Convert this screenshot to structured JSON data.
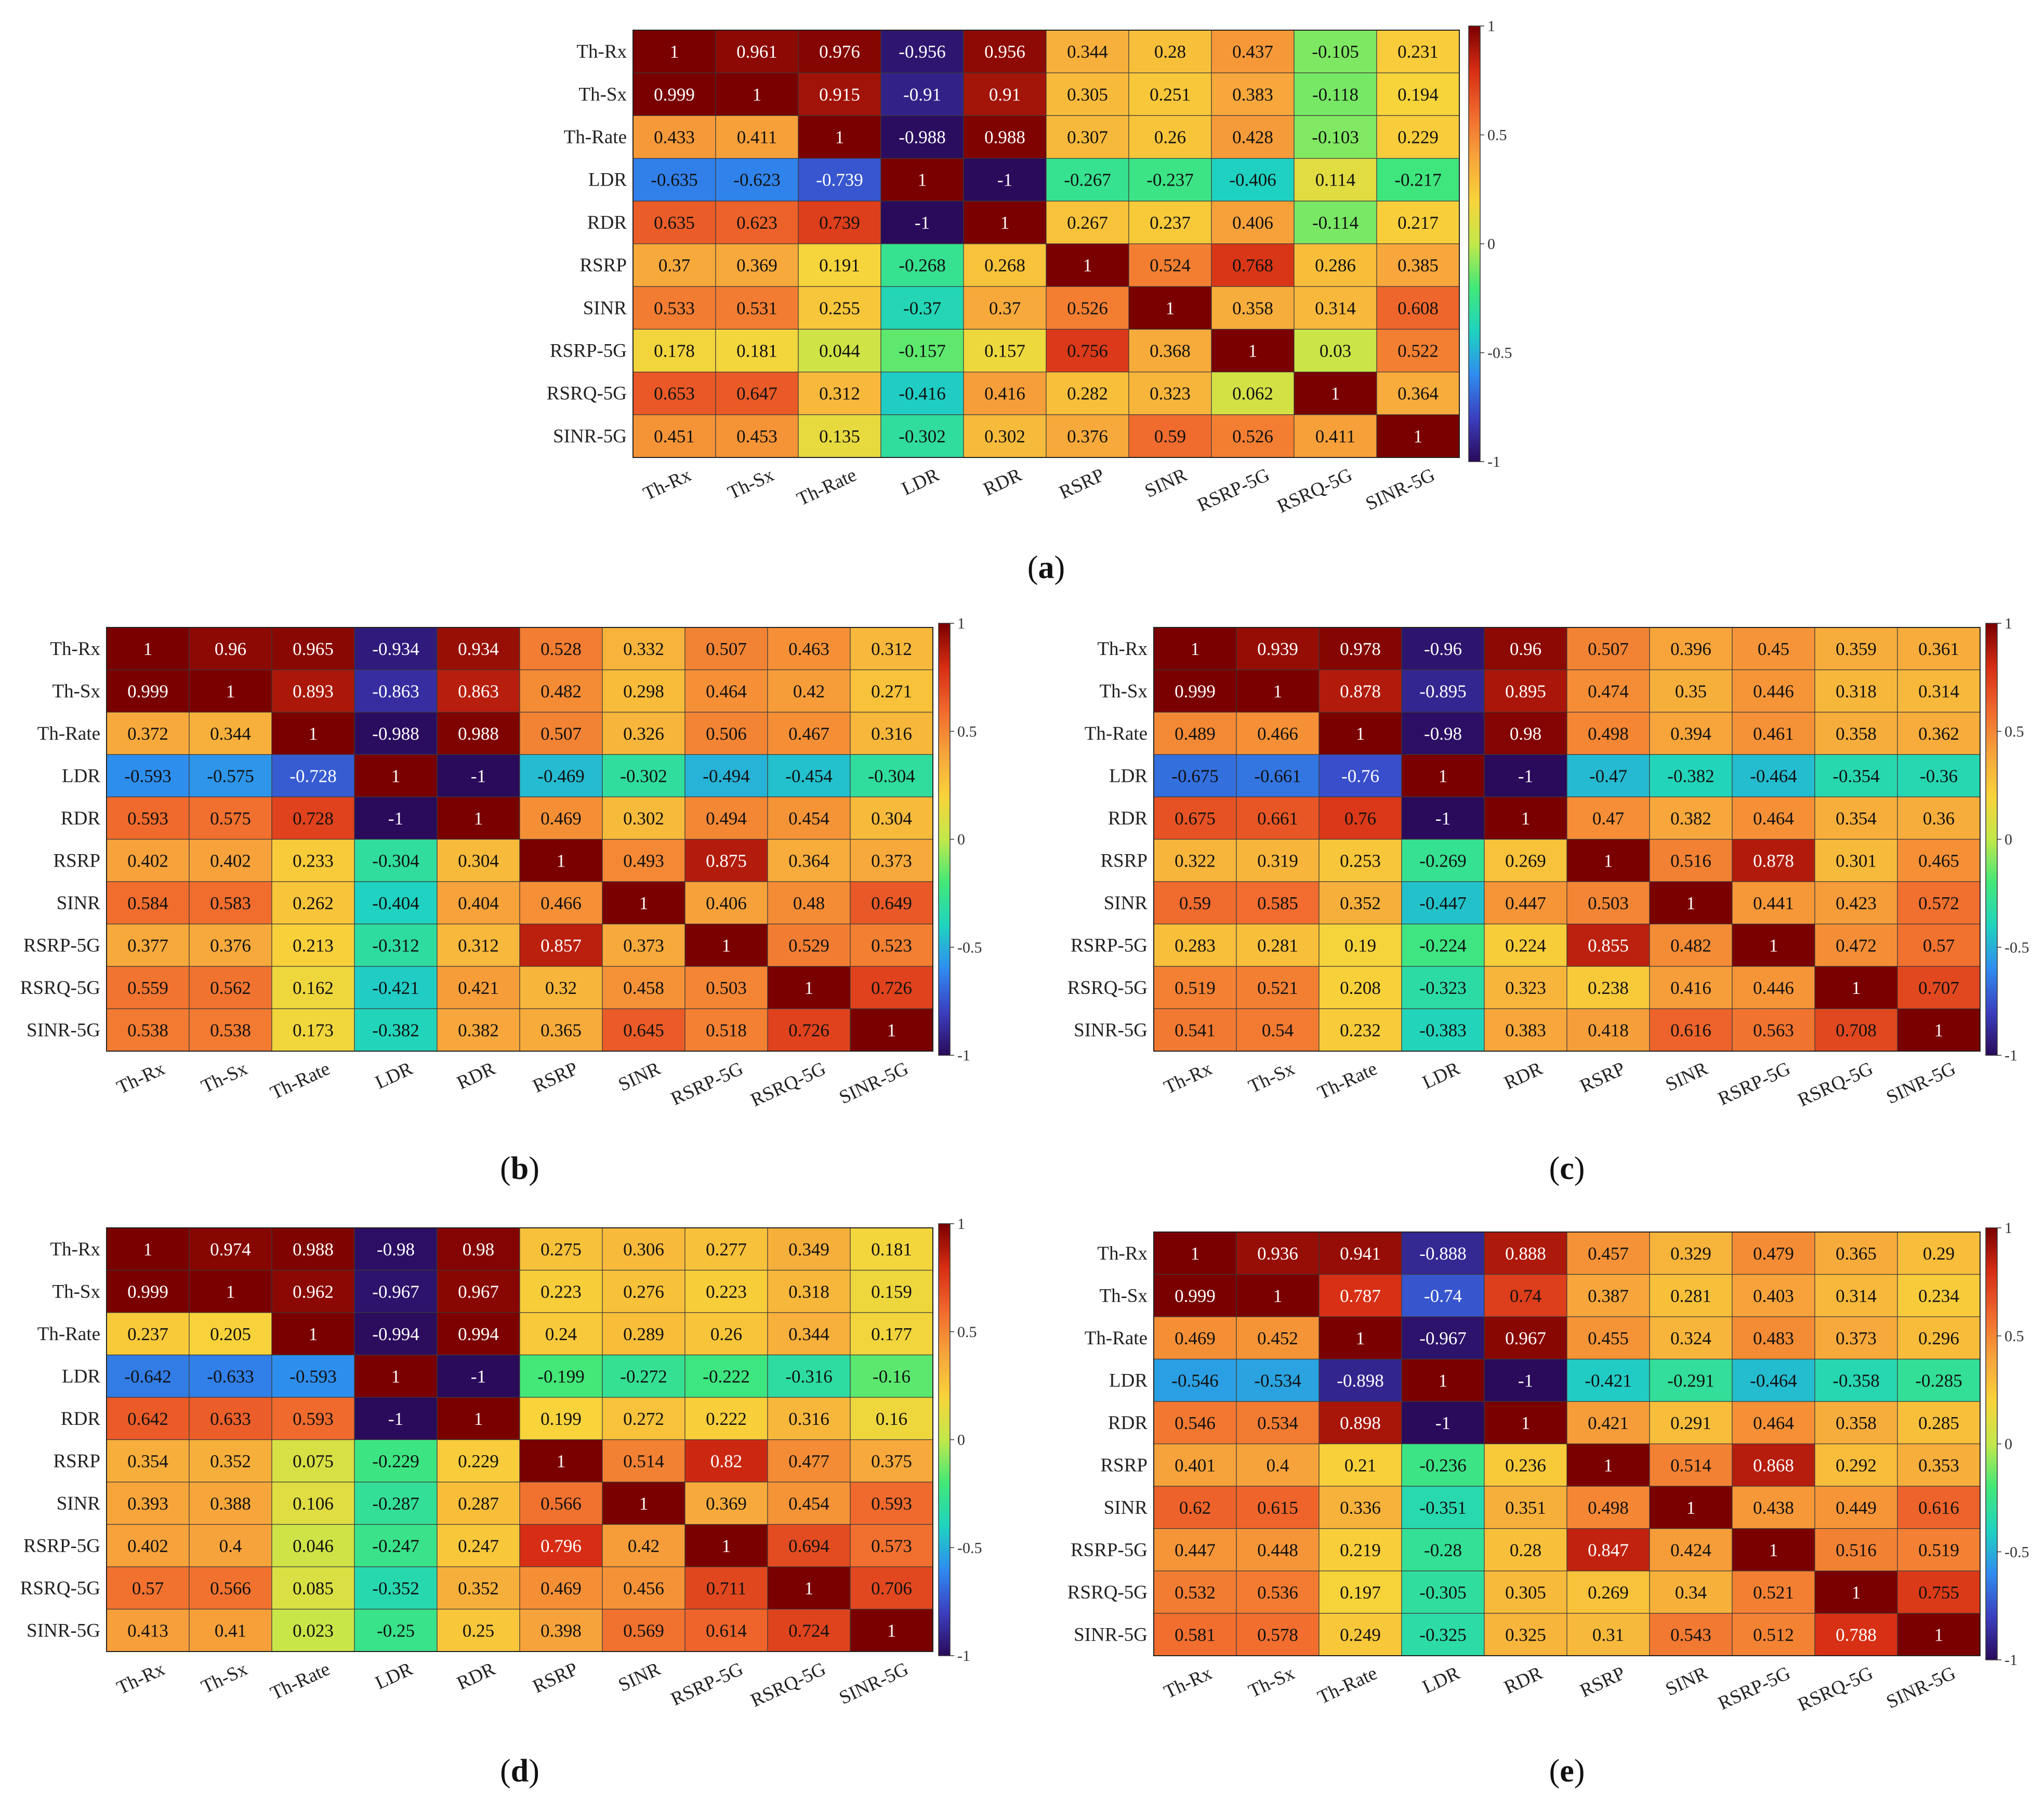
{
  "figure": {
    "colorbar_ticks": [
      "1",
      "0.5",
      "0",
      "-0.5",
      "-1"
    ],
    "colorbar_tick_values": [
      1,
      0.5,
      0,
      -0.5,
      -1
    ],
    "colormap_stops": [
      "#2a0a5a",
      "#3b3fc0",
      "#2f8cf0",
      "#1fd3c0",
      "#42e878",
      "#c3e84a",
      "#f8d33a",
      "#f7a33b",
      "#f0682d",
      "#d52c13",
      "#7a0000"
    ]
  },
  "chart_data": [
    {
      "type": "heatmap",
      "panel_label": "a",
      "rows": [
        "Th-Rx",
        "Th-Sx",
        "Th-Rate",
        "LDR",
        "RDR",
        "RSRP",
        "SINR",
        "RSRP-5G",
        "RSRQ-5G",
        "SINR-5G"
      ],
      "columns": [
        "Th-Rx",
        "Th-Sx",
        "Th-Rate",
        "LDR",
        "RDR",
        "RSRP",
        "SINR",
        "RSRP-5G",
        "RSRQ-5G",
        "SINR-5G"
      ],
      "values": [
        [
          "1",
          "0.961",
          "0.976",
          "-0.956",
          "0.956",
          "0.344",
          "0.28",
          "0.437",
          "-0.105",
          "0.231"
        ],
        [
          "0.999",
          "1",
          "0.915",
          "-0.91",
          "0.91",
          "0.305",
          "0.251",
          "0.383",
          "-0.118",
          "0.194"
        ],
        [
          "0.433",
          "0.411",
          "1",
          "-0.988",
          "0.988",
          "0.307",
          "0.26",
          "0.428",
          "-0.103",
          "0.229"
        ],
        [
          "-0.635",
          "-0.623",
          "-0.739",
          "1",
          "-1",
          "-0.267",
          "-0.237",
          "-0.406",
          "0.114",
          "-0.217"
        ],
        [
          "0.635",
          "0.623",
          "0.739",
          "-1",
          "1",
          "0.267",
          "0.237",
          "0.406",
          "-0.114",
          "0.217"
        ],
        [
          "0.37",
          "0.369",
          "0.191",
          "-0.268",
          "0.268",
          "1",
          "0.524",
          "0.768",
          "0.286",
          "0.385"
        ],
        [
          "0.533",
          "0.531",
          "0.255",
          "-0.37",
          "0.37",
          "0.526",
          "1",
          "0.358",
          "0.314",
          "0.608"
        ],
        [
          "0.178",
          "0.181",
          "0.044",
          "-0.157",
          "0.157",
          "0.756",
          "0.368",
          "1",
          "0.03",
          "0.522"
        ],
        [
          "0.653",
          "0.647",
          "0.312",
          "-0.416",
          "0.416",
          "0.282",
          "0.323",
          "0.062",
          "1",
          "0.364"
        ],
        [
          "0.451",
          "0.453",
          "0.135",
          "-0.302",
          "0.302",
          "0.376",
          "0.59",
          "0.526",
          "0.411",
          "1"
        ]
      ],
      "vmin": -1,
      "vmax": 1
    },
    {
      "type": "heatmap",
      "panel_label": "b",
      "rows": [
        "Th-Rx",
        "Th-Sx",
        "Th-Rate",
        "LDR",
        "RDR",
        "RSRP",
        "SINR",
        "RSRP-5G",
        "RSRQ-5G",
        "SINR-5G"
      ],
      "columns": [
        "Th-Rx",
        "Th-Sx",
        "Th-Rate",
        "LDR",
        "RDR",
        "RSRP",
        "SINR",
        "RSRP-5G",
        "RSRQ-5G",
        "SINR-5G"
      ],
      "values": [
        [
          "1",
          "0.96",
          "0.965",
          "-0.934",
          "0.934",
          "0.528",
          "0.332",
          "0.507",
          "0.463",
          "0.312"
        ],
        [
          "0.999",
          "1",
          "0.893",
          "-0.863",
          "0.863",
          "0.482",
          "0.298",
          "0.464",
          "0.42",
          "0.271"
        ],
        [
          "0.372",
          "0.344",
          "1",
          "-0.988",
          "0.988",
          "0.507",
          "0.326",
          "0.506",
          "0.467",
          "0.316"
        ],
        [
          "-0.593",
          "-0.575",
          "-0.728",
          "1",
          "-1",
          "-0.469",
          "-0.302",
          "-0.494",
          "-0.454",
          "-0.304"
        ],
        [
          "0.593",
          "0.575",
          "0.728",
          "-1",
          "1",
          "0.469",
          "0.302",
          "0.494",
          "0.454",
          "0.304"
        ],
        [
          "0.402",
          "0.402",
          "0.233",
          "-0.304",
          "0.304",
          "1",
          "0.493",
          "0.875",
          "0.364",
          "0.373"
        ],
        [
          "0.584",
          "0.583",
          "0.262",
          "-0.404",
          "0.404",
          "0.466",
          "1",
          "0.406",
          "0.48",
          "0.649"
        ],
        [
          "0.377",
          "0.376",
          "0.213",
          "-0.312",
          "0.312",
          "0.857",
          "0.373",
          "1",
          "0.529",
          "0.523"
        ],
        [
          "0.559",
          "0.562",
          "0.162",
          "-0.421",
          "0.421",
          "0.32",
          "0.458",
          "0.503",
          "1",
          "0.726"
        ],
        [
          "0.538",
          "0.538",
          "0.173",
          "-0.382",
          "0.382",
          "0.365",
          "0.645",
          "0.518",
          "0.726",
          "1"
        ]
      ],
      "vmin": -1,
      "vmax": 1
    },
    {
      "type": "heatmap",
      "panel_label": "c",
      "rows": [
        "Th-Rx",
        "Th-Sx",
        "Th-Rate",
        "LDR",
        "RDR",
        "RSRP",
        "SINR",
        "RSRP-5G",
        "RSRQ-5G",
        "SINR-5G"
      ],
      "columns": [
        "Th-Rx",
        "Th-Sx",
        "Th-Rate",
        "LDR",
        "RDR",
        "RSRP",
        "SINR",
        "RSRP-5G",
        "RSRQ-5G",
        "SINR-5G"
      ],
      "values": [
        [
          "1",
          "0.939",
          "0.978",
          "-0.96",
          "0.96",
          "0.507",
          "0.396",
          "0.45",
          "0.359",
          "0.361"
        ],
        [
          "0.999",
          "1",
          "0.878",
          "-0.895",
          "0.895",
          "0.474",
          "0.35",
          "0.446",
          "0.318",
          "0.314"
        ],
        [
          "0.489",
          "0.466",
          "1",
          "-0.98",
          "0.98",
          "0.498",
          "0.394",
          "0.461",
          "0.358",
          "0.362"
        ],
        [
          "-0.675",
          "-0.661",
          "-0.76",
          "1",
          "-1",
          "-0.47",
          "-0.382",
          "-0.464",
          "-0.354",
          "-0.36"
        ],
        [
          "0.675",
          "0.661",
          "0.76",
          "-1",
          "1",
          "0.47",
          "0.382",
          "0.464",
          "0.354",
          "0.36"
        ],
        [
          "0.322",
          "0.319",
          "0.253",
          "-0.269",
          "0.269",
          "1",
          "0.516",
          "0.878",
          "0.301",
          "0.465"
        ],
        [
          "0.59",
          "0.585",
          "0.352",
          "-0.447",
          "0.447",
          "0.503",
          "1",
          "0.441",
          "0.423",
          "0.572"
        ],
        [
          "0.283",
          "0.281",
          "0.19",
          "-0.224",
          "0.224",
          "0.855",
          "0.482",
          "1",
          "0.472",
          "0.57"
        ],
        [
          "0.519",
          "0.521",
          "0.208",
          "-0.323",
          "0.323",
          "0.238",
          "0.416",
          "0.446",
          "1",
          "0.707"
        ],
        [
          "0.541",
          "0.54",
          "0.232",
          "-0.383",
          "0.383",
          "0.418",
          "0.616",
          "0.563",
          "0.708",
          "1"
        ]
      ],
      "vmin": -1,
      "vmax": 1
    },
    {
      "type": "heatmap",
      "panel_label": "d",
      "rows": [
        "Th-Rx",
        "Th-Sx",
        "Th-Rate",
        "LDR",
        "RDR",
        "RSRP",
        "SINR",
        "RSRP-5G",
        "RSRQ-5G",
        "SINR-5G"
      ],
      "columns": [
        "Th-Rx",
        "Th-Sx",
        "Th-Rate",
        "LDR",
        "RDR",
        "RSRP",
        "SINR",
        "RSRP-5G",
        "RSRQ-5G",
        "SINR-5G"
      ],
      "values": [
        [
          "1",
          "0.974",
          "0.988",
          "-0.98",
          "0.98",
          "0.275",
          "0.306",
          "0.277",
          "0.349",
          "0.181"
        ],
        [
          "0.999",
          "1",
          "0.962",
          "-0.967",
          "0.967",
          "0.223",
          "0.276",
          "0.223",
          "0.318",
          "0.159"
        ],
        [
          "0.237",
          "0.205",
          "1",
          "-0.994",
          "0.994",
          "0.24",
          "0.289",
          "0.26",
          "0.344",
          "0.177"
        ],
        [
          "-0.642",
          "-0.633",
          "-0.593",
          "1",
          "-1",
          "-0.199",
          "-0.272",
          "-0.222",
          "-0.316",
          "-0.16"
        ],
        [
          "0.642",
          "0.633",
          "0.593",
          "-1",
          "1",
          "0.199",
          "0.272",
          "0.222",
          "0.316",
          "0.16"
        ],
        [
          "0.354",
          "0.352",
          "0.075",
          "-0.229",
          "0.229",
          "1",
          "0.514",
          "0.82",
          "0.477",
          "0.375"
        ],
        [
          "0.393",
          "0.388",
          "0.106",
          "-0.287",
          "0.287",
          "0.566",
          "1",
          "0.369",
          "0.454",
          "0.593"
        ],
        [
          "0.402",
          "0.4",
          "0.046",
          "-0.247",
          "0.247",
          "0.796",
          "0.42",
          "1",
          "0.694",
          "0.573"
        ],
        [
          "0.57",
          "0.566",
          "0.085",
          "-0.352",
          "0.352",
          "0.469",
          "0.456",
          "0.711",
          "1",
          "0.706"
        ],
        [
          "0.413",
          "0.41",
          "0.023",
          "-0.25",
          "0.25",
          "0.398",
          "0.569",
          "0.614",
          "0.724",
          "1"
        ]
      ],
      "vmin": -1,
      "vmax": 1
    },
    {
      "type": "heatmap",
      "panel_label": "e",
      "rows": [
        "Th-Rx",
        "Th-Sx",
        "Th-Rate",
        "LDR",
        "RDR",
        "RSRP",
        "SINR",
        "RSRP-5G",
        "RSRQ-5G",
        "SINR-5G"
      ],
      "columns": [
        "Th-Rx",
        "Th-Sx",
        "Th-Rate",
        "LDR",
        "RDR",
        "RSRP",
        "SINR",
        "RSRP-5G",
        "RSRQ-5G",
        "SINR-5G"
      ],
      "values": [
        [
          "1",
          "0.936",
          "0.941",
          "-0.888",
          "0.888",
          "0.457",
          "0.329",
          "0.479",
          "0.365",
          "0.29"
        ],
        [
          "0.999",
          "1",
          "0.787",
          "-0.74",
          "0.74",
          "0.387",
          "0.281",
          "0.403",
          "0.314",
          "0.234"
        ],
        [
          "0.469",
          "0.452",
          "1",
          "-0.967",
          "0.967",
          "0.455",
          "0.324",
          "0.483",
          "0.373",
          "0.296"
        ],
        [
          "-0.546",
          "-0.534",
          "-0.898",
          "1",
          "-1",
          "-0.421",
          "-0.291",
          "-0.464",
          "-0.358",
          "-0.285"
        ],
        [
          "0.546",
          "0.534",
          "0.898",
          "-1",
          "1",
          "0.421",
          "0.291",
          "0.464",
          "0.358",
          "0.285"
        ],
        [
          "0.401",
          "0.4",
          "0.21",
          "-0.236",
          "0.236",
          "1",
          "0.514",
          "0.868",
          "0.292",
          "0.353"
        ],
        [
          "0.62",
          "0.615",
          "0.336",
          "-0.351",
          "0.351",
          "0.498",
          "1",
          "0.438",
          "0.449",
          "0.616"
        ],
        [
          "0.447",
          "0.448",
          "0.219",
          "-0.28",
          "0.28",
          "0.847",
          "0.424",
          "1",
          "0.516",
          "0.519"
        ],
        [
          "0.532",
          "0.536",
          "0.197",
          "-0.305",
          "0.305",
          "0.269",
          "0.34",
          "0.521",
          "1",
          "0.755"
        ],
        [
          "0.581",
          "0.578",
          "0.249",
          "-0.325",
          "0.325",
          "0.31",
          "0.543",
          "0.512",
          "0.788",
          "1"
        ]
      ],
      "vmin": -1,
      "vmax": 1
    }
  ]
}
